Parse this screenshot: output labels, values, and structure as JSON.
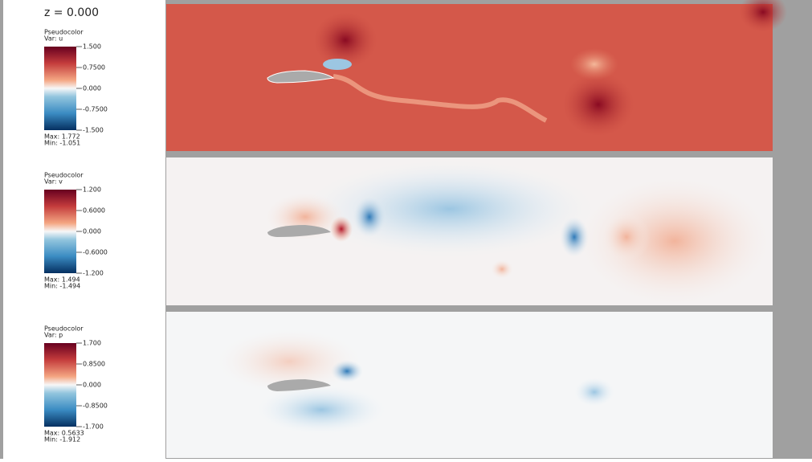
{
  "time_label": "z = 0.000",
  "legends": [
    {
      "plot": "Pseudocolor",
      "var": "Var: u",
      "ticks": [
        "1.500",
        "0.7500",
        "0.000",
        "-0.7500",
        "-1.500"
      ],
      "max": "Max:  1.772",
      "min": "Min: -1.051"
    },
    {
      "plot": "Pseudocolor",
      "var": "Var: v",
      "ticks": [
        "1.200",
        "0.6000",
        "0.000",
        "-0.6000",
        "-1.200"
      ],
      "max": "Max:  1.494",
      "min": "Min: -1.494"
    },
    {
      "plot": "Pseudocolor",
      "var": "Var: p",
      "ticks": [
        "1.700",
        "0.8500",
        "0.000",
        "-0.8500",
        "-1.700"
      ],
      "max": "Max:  0.5633",
      "min": "Min: -1.912"
    }
  ]
}
